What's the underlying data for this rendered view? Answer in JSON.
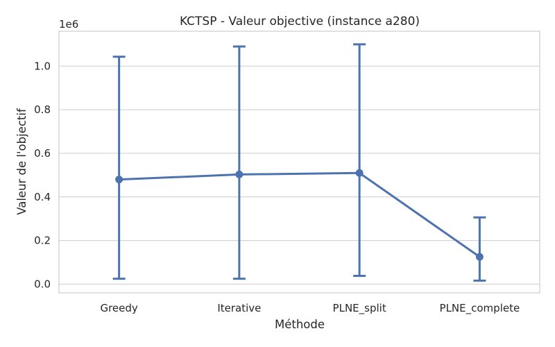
{
  "chart_data": {
    "type": "line",
    "title": "KCTSP - Valeur objective (instance a280)",
    "xlabel": "Méthode",
    "ylabel": "Valeur de l'objectif",
    "y_offset_label": "1e6",
    "categories": [
      "Greedy",
      "Iterative",
      "PLNE_split",
      "PLNE_complete"
    ],
    "series": [
      {
        "values": [
          0.48,
          0.503,
          0.51,
          0.125
        ],
        "err_low": [
          0.025,
          0.025,
          0.038,
          0.016
        ],
        "err_high": [
          1.043,
          1.09,
          1.1,
          0.306
        ],
        "color": "#4c72b0"
      }
    ],
    "ylim": [
      -0.04,
      1.16
    ],
    "yticks": [
      0.0,
      0.2,
      0.4,
      0.6,
      0.8,
      1.0
    ],
    "ytick_labels": [
      "0.0",
      "0.2",
      "0.4",
      "0.6",
      "0.8",
      "1.0"
    ],
    "grid": true,
    "grid_axis": "y"
  }
}
